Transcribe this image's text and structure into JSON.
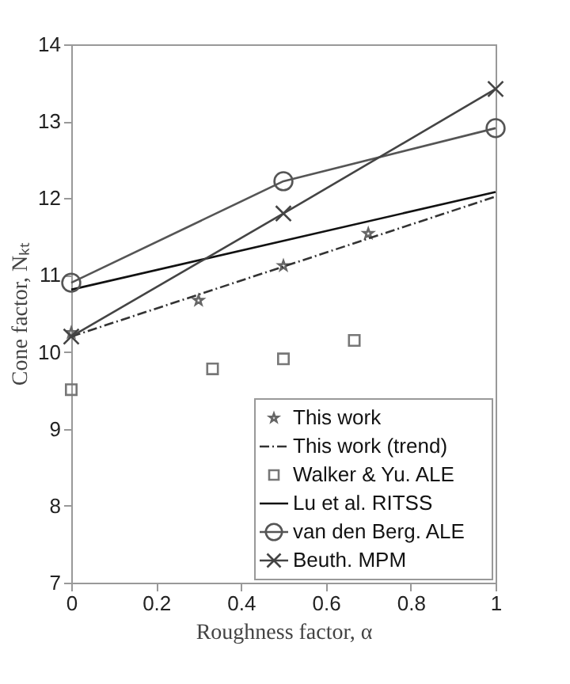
{
  "chart_data": {
    "type": "scatter",
    "xlabel": "Roughness factor, α",
    "ylabel": "Cone factor, Nₖₜ",
    "xlim": [
      0,
      1
    ],
    "ylim": [
      7,
      14
    ],
    "xticks": [
      0,
      0.2,
      0.4,
      0.6,
      0.8,
      1
    ],
    "yticks": [
      7,
      8,
      9,
      10,
      11,
      12,
      13,
      14
    ],
    "grid": false,
    "legend": "bottom right",
    "series": [
      {
        "name": "This work",
        "marker": "star",
        "color": "#666666",
        "x": [
          0,
          0.3,
          0.5,
          0.7
        ],
        "values": [
          10.25,
          10.67,
          11.12,
          11.54
        ]
      },
      {
        "name": "This work (trend)",
        "type": "line",
        "marker": "none",
        "line_style": "dashed",
        "color": "#333333",
        "x": [
          0,
          1
        ],
        "values": [
          10.2,
          12.02
        ]
      },
      {
        "name": "Walker & Yu. ALE",
        "marker": "square",
        "color": "#777777",
        "x": [
          0,
          0.333,
          0.5,
          0.667
        ],
        "values": [
          9.51,
          9.78,
          9.91,
          10.15
        ]
      },
      {
        "name": "Lu et al. RITSS",
        "type": "line",
        "marker": "none",
        "line_style": "solid",
        "color": "#111111",
        "x": [
          0,
          1
        ],
        "values": [
          10.81,
          12.08
        ]
      },
      {
        "name": "van den Berg. ALE",
        "type": "line",
        "marker": "circle",
        "line_style": "solid",
        "color": "#555555",
        "x": [
          0,
          0.5,
          1
        ],
        "values": [
          10.9,
          12.22,
          12.91
        ]
      },
      {
        "name": "Beuth. MPM",
        "type": "line",
        "marker": "cross",
        "line_style": "solid",
        "color": "#444444",
        "x": [
          0,
          0.5,
          1
        ],
        "values": [
          10.2,
          11.8,
          13.42
        ]
      }
    ]
  }
}
